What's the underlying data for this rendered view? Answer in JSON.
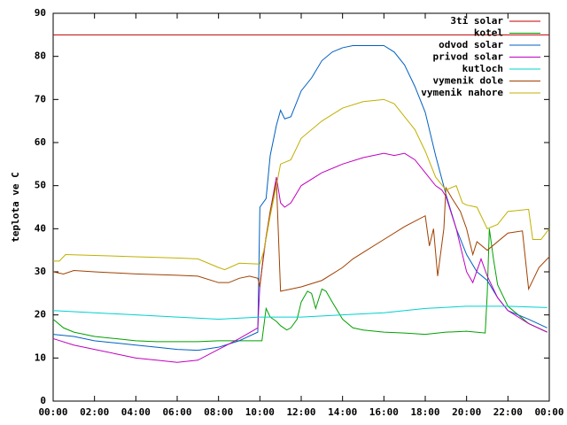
{
  "chart_data": {
    "type": "line",
    "ylabel": "teplota ve C",
    "xlim": [
      0,
      24
    ],
    "ylim": [
      0,
      90
    ],
    "xticks": [
      {
        "value": 0,
        "label": "00:00"
      },
      {
        "value": 2,
        "label": "02:00"
      },
      {
        "value": 4,
        "label": "04:00"
      },
      {
        "value": 6,
        "label": "06:00"
      },
      {
        "value": 8,
        "label": "08:00"
      },
      {
        "value": 10,
        "label": "10:00"
      },
      {
        "value": 12,
        "label": "12:00"
      },
      {
        "value": 14,
        "label": "14:00"
      },
      {
        "value": 16,
        "label": "16:00"
      },
      {
        "value": 18,
        "label": "18:00"
      },
      {
        "value": 20,
        "label": "20:00"
      },
      {
        "value": 22,
        "label": "22:00"
      },
      {
        "value": 24,
        "label": "00:00"
      }
    ],
    "yticks": [
      0,
      10,
      20,
      30,
      40,
      50,
      60,
      70,
      80,
      90
    ],
    "legend": "top-right",
    "series": [
      {
        "name": "3ti solar",
        "color": "#c00000",
        "x": [
          0,
          24
        ],
        "values": [
          85,
          85
        ]
      },
      {
        "name": "kotel",
        "color": "#00a000",
        "x": [
          0,
          0.5,
          1,
          2,
          3,
          4,
          5,
          6,
          7,
          8,
          9,
          10,
          10.1,
          10.3,
          10.5,
          10.8,
          11,
          11.3,
          11.5,
          11.8,
          12,
          12.3,
          12.5,
          12.7,
          13,
          13.2,
          13.5,
          14,
          14.5,
          15,
          16,
          17,
          18,
          19,
          20,
          20.9,
          21,
          21.1,
          21.3,
          21.5,
          22,
          23,
          23.9
        ],
        "values": [
          19,
          17,
          16,
          15,
          14.5,
          14,
          13.8,
          13.8,
          13.8,
          14,
          14,
          14,
          14,
          21.5,
          19.5,
          18.5,
          17.5,
          16.5,
          17,
          19,
          23,
          25.5,
          25,
          21.5,
          26,
          25.5,
          23,
          19,
          17,
          16.5,
          16,
          15.8,
          15.5,
          16,
          16.2,
          15.8,
          25,
          40,
          33,
          27,
          22,
          18,
          16
        ]
      },
      {
        "name": "odvod solar",
        "color": "#0060c0",
        "x": [
          0,
          1,
          2,
          3,
          4,
          5,
          6,
          7,
          8,
          9,
          9.9,
          10,
          10.3,
          10.5,
          10.8,
          11,
          11.2,
          11.5,
          12,
          12.5,
          13,
          13.5,
          14,
          14.5,
          15,
          16,
          16.5,
          17,
          17.5,
          18,
          18.5,
          19,
          19.5,
          20,
          20.5,
          21,
          21.5,
          22,
          23,
          23.9
        ],
        "values": [
          15.5,
          15,
          14,
          13.5,
          13,
          12.5,
          12,
          11.8,
          12.5,
          14,
          16,
          45,
          47,
          57,
          64,
          67.5,
          65.5,
          66,
          72,
          75,
          79,
          81,
          82,
          82.5,
          82.5,
          82.5,
          81,
          78,
          73,
          67,
          57,
          48,
          40,
          34,
          30,
          28,
          24,
          21,
          19,
          17
        ]
      },
      {
        "name": "privod solar",
        "color": "#c000c0",
        "x": [
          0,
          1,
          2,
          3,
          4,
          5,
          6,
          7,
          8,
          9,
          9.9,
          10,
          10.3,
          10.5,
          10.8,
          11,
          11.2,
          11.5,
          12,
          13,
          14,
          15,
          16,
          16.5,
          17,
          17.5,
          18,
          18.5,
          18.8,
          19,
          19.5,
          20,
          20.3,
          20.7,
          21,
          21.5,
          22,
          23,
          23.9
        ],
        "values": [
          14.5,
          13,
          12,
          11,
          10,
          9.5,
          9,
          9.5,
          12,
          14.5,
          17,
          27,
          38,
          44,
          52,
          46,
          45,
          46,
          50,
          53,
          55,
          56.5,
          57.5,
          57,
          57.5,
          56,
          53,
          50,
          49,
          47.5,
          40,
          30,
          27.5,
          33,
          29,
          24,
          21,
          18,
          16
        ]
      },
      {
        "name": "kutloch",
        "color": "#00d0d0",
        "x": [
          0,
          2,
          4,
          6,
          8,
          10,
          12,
          14,
          16,
          18,
          20,
          22,
          23.9
        ],
        "values": [
          21,
          20.5,
          20,
          19.5,
          19,
          19.5,
          19.5,
          20,
          20.5,
          21.5,
          22,
          22,
          21.7
        ]
      },
      {
        "name": "vymenik dole",
        "color": "#a04000",
        "x": [
          0,
          0.5,
          1,
          2,
          4,
          6,
          7,
          8,
          8.5,
          9,
          9.5,
          9.9,
          10,
          10.2,
          10.5,
          10.8,
          11,
          11.5,
          12,
          13,
          14,
          14.5,
          15,
          16,
          17,
          18,
          18.2,
          18.4,
          18.6,
          18.9,
          19,
          19.3,
          19.7,
          20,
          20.3,
          20.5,
          21,
          21.5,
          22,
          22.7,
          23,
          23.5,
          24
        ],
        "values": [
          30,
          29.5,
          30.3,
          30,
          29.5,
          29.2,
          29,
          27.5,
          27.5,
          28.5,
          29,
          28.5,
          26.5,
          35,
          44,
          51,
          25.5,
          26,
          26.5,
          28,
          31,
          33,
          34.5,
          37.5,
          40.5,
          43,
          36,
          40,
          29,
          40,
          49.5,
          47,
          44,
          40,
          34,
          37,
          35,
          37,
          39,
          39.5,
          26,
          31,
          33.5
        ]
      },
      {
        "name": "vymenik nahore",
        "color": "#c0b000",
        "x": [
          0,
          0.3,
          0.6,
          2,
          4,
          6,
          7,
          8,
          8.3,
          9,
          10,
          10.2,
          10.5,
          10.8,
          11,
          11.5,
          12,
          13,
          14,
          15,
          16,
          16.5,
          17,
          17.5,
          18,
          18.5,
          19,
          19.5,
          19.8,
          20,
          20.5,
          21,
          21.5,
          22,
          23,
          23.2,
          23.6,
          24
        ],
        "values": [
          32.5,
          32.5,
          34,
          33.8,
          33.5,
          33.2,
          33,
          31,
          30.5,
          32,
          31.8,
          35,
          43,
          50,
          55,
          56,
          61,
          65,
          68,
          69.5,
          70,
          69,
          66,
          63,
          58,
          52,
          49,
          50,
          46,
          45.5,
          45,
          40,
          41,
          44,
          44.5,
          37.5,
          37.5,
          40
        ]
      }
    ]
  }
}
